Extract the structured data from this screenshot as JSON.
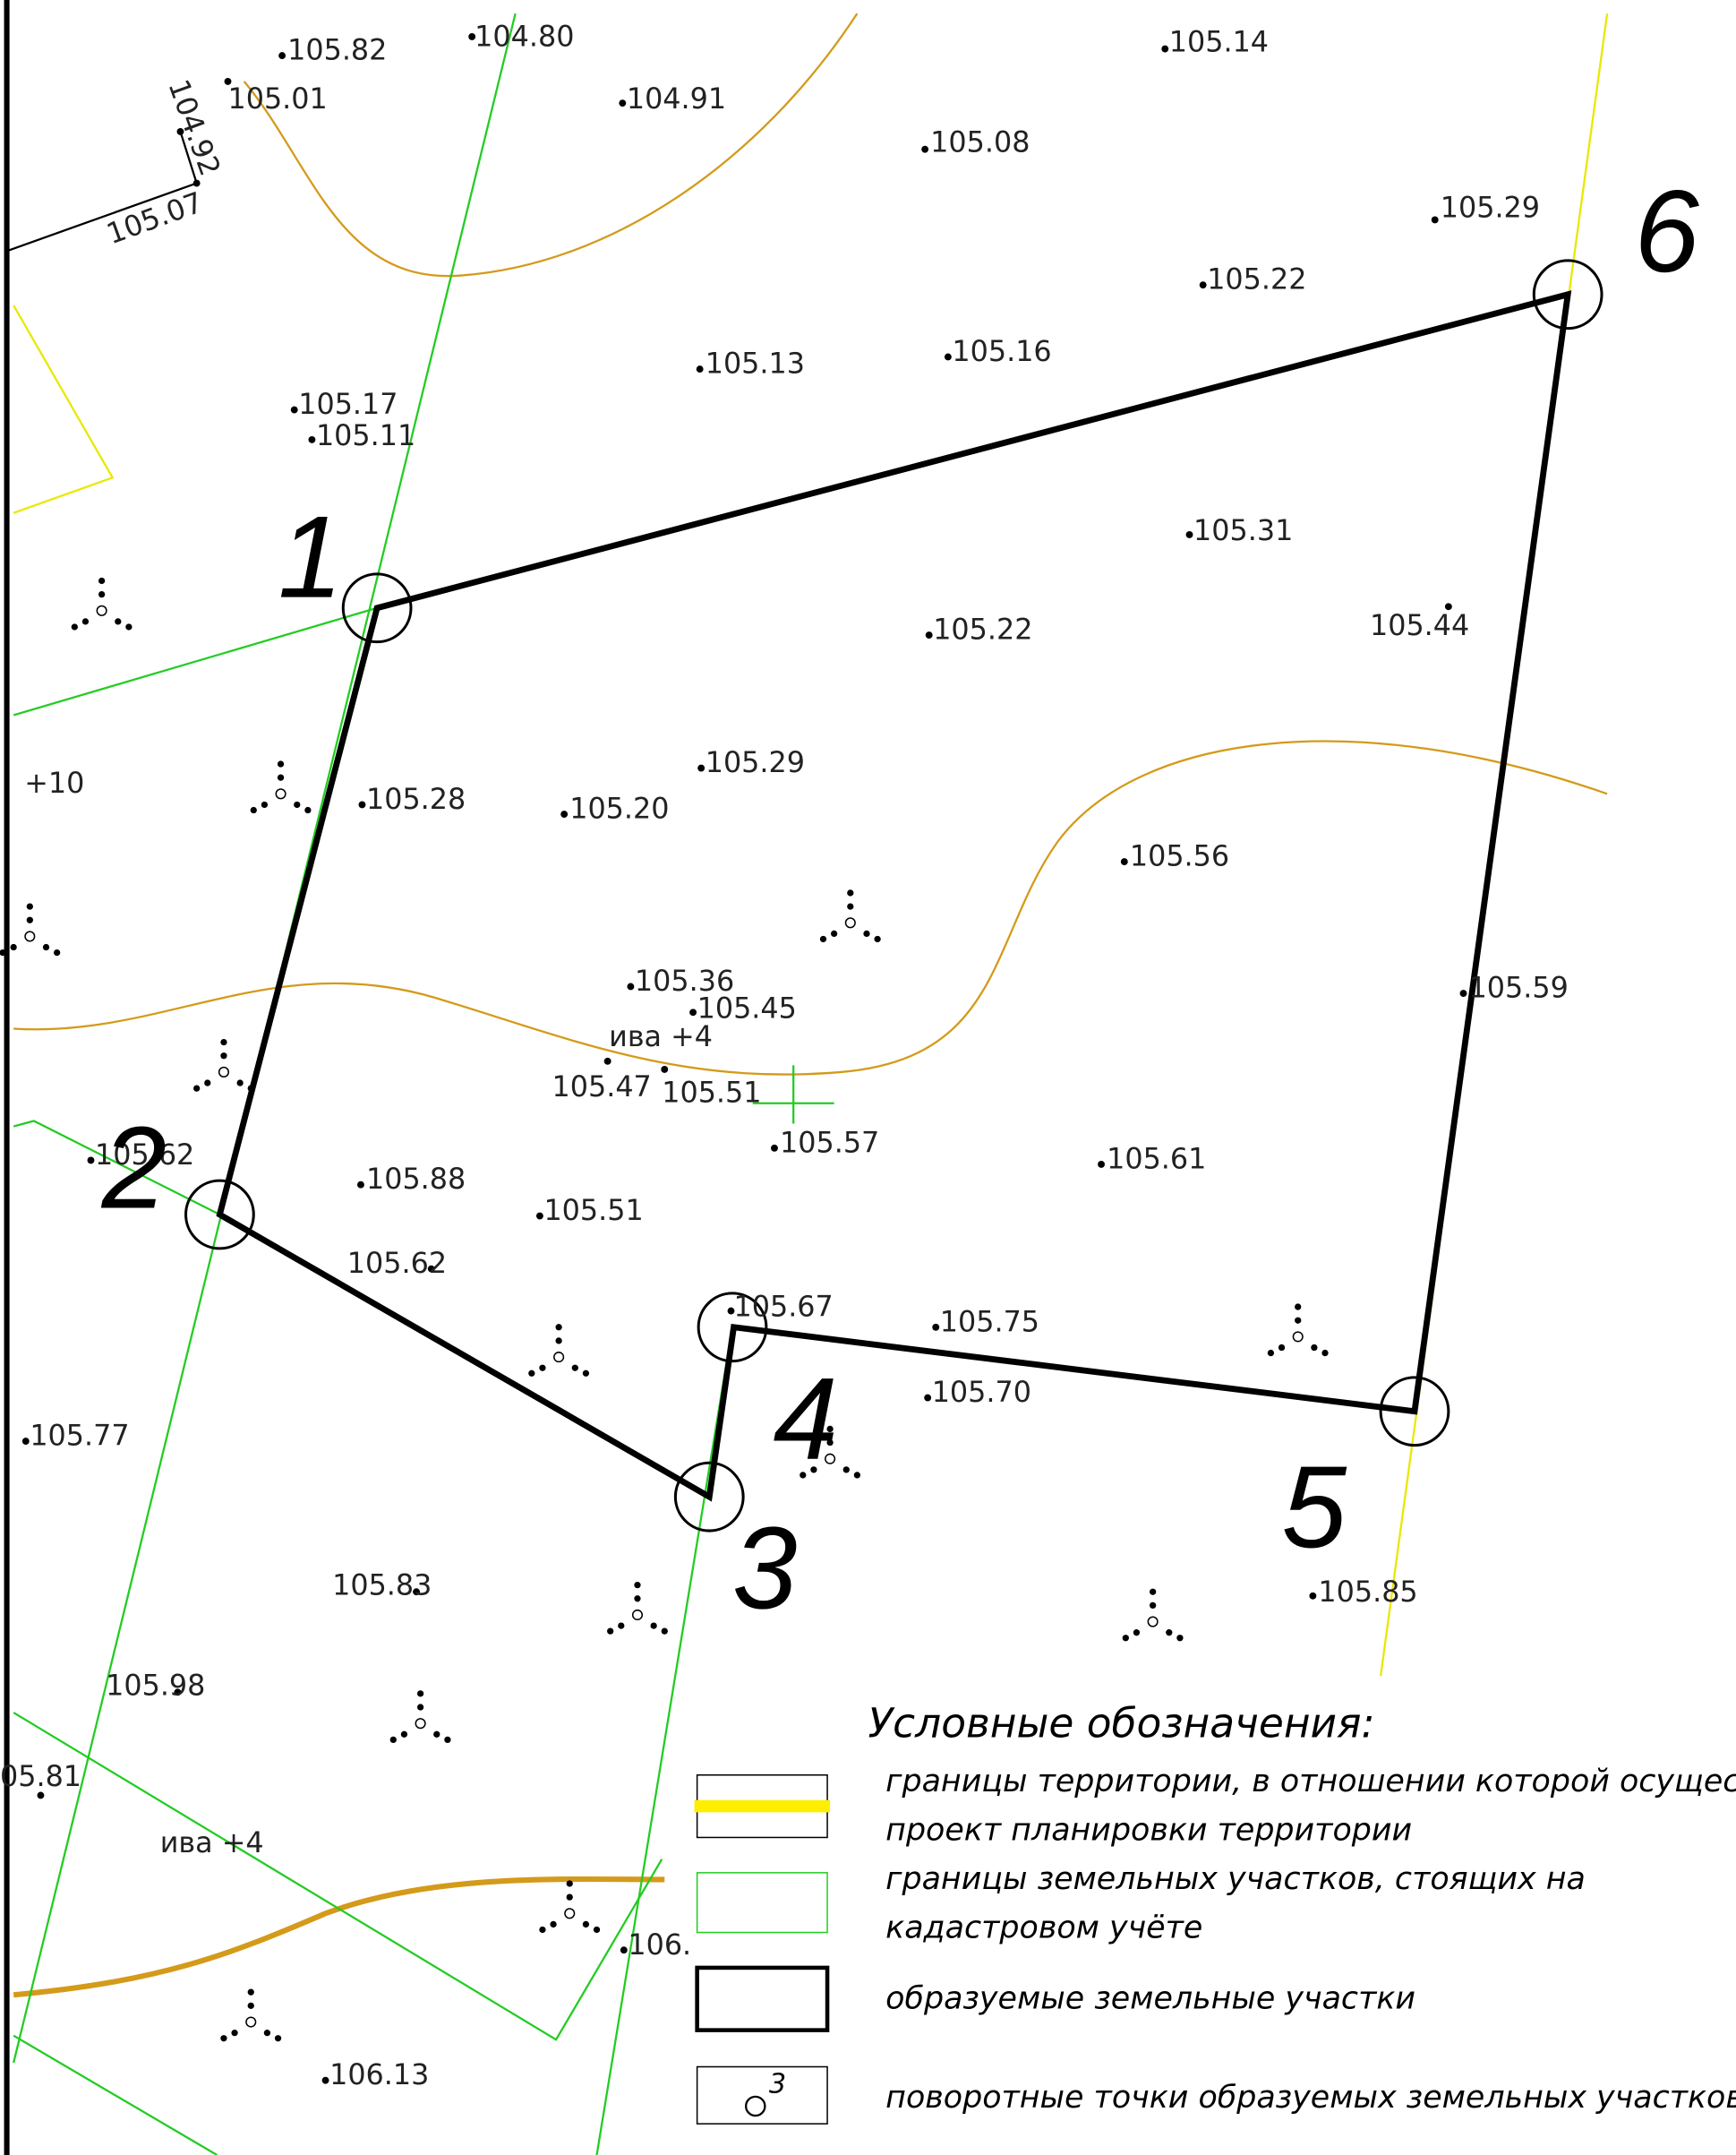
{
  "elevations": [
    "105.82",
    "104.80",
    "105.01",
    "104.92",
    "105.07",
    "104.91",
    "105.14",
    "105.08",
    "105.29",
    "105.22",
    "105.13",
    "105.16",
    "105.17",
    "105.11",
    "105.31",
    "105.22",
    "105.44",
    "105.29",
    "105.28",
    "105.20",
    "105.56",
    "105.59",
    "105.36",
    "105.45",
    "105.47",
    "105.51",
    "105.57",
    "105.61",
    "105.62",
    "105.88",
    "105.51",
    "105.62",
    "105.67",
    "105.75",
    "105.70",
    "105.77",
    "105.83",
    "105.85",
    "105.98",
    "05.81",
    "106.",
    "106.13"
  ],
  "labels": [
    "+10",
    "ива +4",
    "ива +4"
  ],
  "points": [
    "1",
    "2",
    "3",
    "4",
    "5",
    "6"
  ],
  "legend": {
    "title": "Условные обозначения:",
    "items": [
      "границы территории, в отношении которой осуществля",
      "проект планировки территории",
      "границы земельных участков, стоящих на",
      "кадастровом учёте",
      "образуемые земельные участки",
      "поворотные точки образуемых земельных участков"
    ],
    "sample": "3"
  }
}
